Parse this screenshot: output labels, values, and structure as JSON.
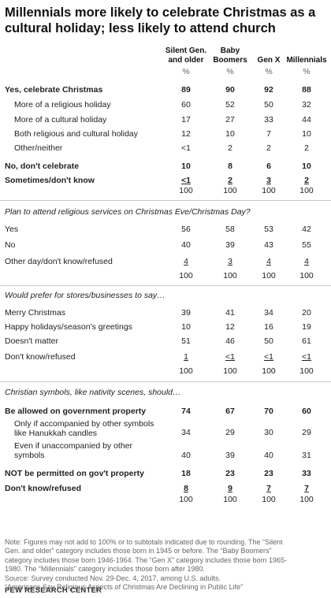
{
  "title": "Millennials more likely to celebrate Christmas as a cultural holiday; less likely to attend church",
  "columns": [
    [
      "Silent Gen.",
      "and older"
    ],
    [
      "Baby",
      "Boomers"
    ],
    [
      "Gen X"
    ],
    [
      "Millennials"
    ]
  ],
  "pct_row": [
    "%",
    "%",
    "%",
    "%"
  ],
  "section1": {
    "rows": [
      {
        "label": "Yes, celebrate Christmas",
        "values": [
          "89",
          "90",
          "92",
          "88"
        ]
      },
      {
        "label": "More of a religious holiday",
        "values": [
          "60",
          "52",
          "50",
          "32"
        ]
      },
      {
        "label": "More of a cultural holiday",
        "values": [
          "17",
          "27",
          "33",
          "44"
        ]
      },
      {
        "label": "Both religious and cultural holiday",
        "values": [
          "12",
          "10",
          "7",
          "10"
        ]
      },
      {
        "label": "Other/neither",
        "values": [
          "<1",
          "2",
          "2",
          "2"
        ]
      },
      {
        "label": "No, don't celebrate",
        "values": [
          "10",
          "8",
          "6",
          "10"
        ]
      },
      {
        "label": "Sometimes/don't know",
        "values": [
          "<1",
          "2",
          "3",
          "2"
        ]
      }
    ],
    "totals": [
      "100",
      "100",
      "100",
      "100"
    ]
  },
  "section2": {
    "question": "Plan to attend religious services on Christmas Eve/Christmas Day?",
    "rows": [
      {
        "label": "Yes",
        "values": [
          "56",
          "58",
          "53",
          "42"
        ]
      },
      {
        "label": "No",
        "values": [
          "40",
          "39",
          "43",
          "55"
        ]
      },
      {
        "label": "Other day/don't know/refused",
        "values": [
          "4",
          "3",
          "4",
          "4"
        ]
      }
    ],
    "totals": [
      "100",
      "100",
      "100",
      "100"
    ]
  },
  "section3": {
    "question": "Would prefer for stores/businesses to say…",
    "rows": [
      {
        "label": "Merry Christmas",
        "values": [
          "39",
          "41",
          "34",
          "20"
        ]
      },
      {
        "label": "Happy holidays/season's greetings",
        "values": [
          "10",
          "12",
          "16",
          "19"
        ]
      },
      {
        "label": "Doesn't matter",
        "values": [
          "51",
          "46",
          "50",
          "61"
        ]
      },
      {
        "label": "Don't know/refused",
        "values": [
          "1",
          "<1",
          "<1",
          "<1"
        ]
      }
    ],
    "totals": [
      "100",
      "100",
      "100",
      "100"
    ]
  },
  "section4": {
    "question": "Christian symbols, like nativity scenes, should…",
    "rows": [
      {
        "label": "Be allowed on government property",
        "values": [
          "74",
          "67",
          "70",
          "60"
        ]
      },
      {
        "label_lines": [
          "Only if accompanied by other symbols",
          "like Hanukkah candles"
        ],
        "values": [
          "34",
          "29",
          "30",
          "29"
        ]
      },
      {
        "label_lines": [
          "Even if unaccompanied by other",
          "symbols"
        ],
        "values": [
          "40",
          "39",
          "40",
          "31"
        ]
      },
      {
        "label": "NOT be permitted on gov't property",
        "values": [
          "18",
          "23",
          "23",
          "33"
        ]
      },
      {
        "label": "Don't know/refused",
        "values": [
          "8",
          "9",
          "7",
          "7"
        ]
      }
    ],
    "totals": [
      "100",
      "100",
      "100",
      "100"
    ]
  },
  "note_lines": [
    "Note: Figures may not add to 100% or to subtotals indicated due to rounding. The “Silent",
    "Gen. and older” category includes those born in 1945 or before. The “Baby Boomers”",
    "category includes those born 1946-1964. The “Gen X” category includes those born 1965-",
    "1980. The “Millennials” category includes those born after 1980.",
    "Source: Survey conducted Nov. 29-Dec. 4, 2017, among U.S. adults.",
    "“Americans Say Religious Aspects of Christmas Are Declining in Public Life”"
  ],
  "source": "PEW RESEARCH CENTER",
  "chart_data": {
    "type": "table",
    "title": "Millennials more likely to celebrate Christmas as a cultural holiday; less likely to attend church",
    "columns": [
      "Silent Gen. and older",
      "Baby Boomers",
      "Gen X",
      "Millennials"
    ],
    "unit": "%",
    "rows": [
      {
        "label": "Yes, celebrate Christmas",
        "values": [
          89,
          90,
          92,
          88
        ]
      },
      {
        "label": "More of a religious holiday",
        "values": [
          60,
          52,
          50,
          32
        ]
      },
      {
        "label": "More of a cultural holiday",
        "values": [
          17,
          27,
          33,
          44
        ]
      },
      {
        "label": "Both religious and cultural holiday",
        "values": [
          12,
          10,
          7,
          10
        ]
      },
      {
        "label": "Other/neither",
        "values": [
          "<1",
          2,
          2,
          2
        ]
      },
      {
        "label": "No, don't celebrate",
        "values": [
          10,
          8,
          6,
          10
        ]
      },
      {
        "label": "Sometimes/don't know",
        "values": [
          "<1",
          2,
          3,
          2
        ]
      },
      {
        "label": "Yes",
        "values": [
          56,
          58,
          53,
          42
        ]
      },
      {
        "label": "No",
        "values": [
          40,
          39,
          43,
          55
        ]
      },
      {
        "label": "Other day/don't know/refused",
        "values": [
          4,
          3,
          4,
          4
        ]
      },
      {
        "label": "Merry Christmas",
        "values": [
          39,
          41,
          34,
          20
        ]
      },
      {
        "label": "Happy holidays/season's greetings",
        "values": [
          10,
          12,
          16,
          19
        ]
      },
      {
        "label": "Doesn't matter",
        "values": [
          51,
          46,
          50,
          61
        ]
      },
      {
        "label": "Don't know/refused",
        "values": [
          1,
          "<1",
          "<1",
          "<1"
        ]
      },
      {
        "label": "Be allowed on government property",
        "values": [
          74,
          67,
          70,
          60
        ]
      },
      {
        "label": "Only if accompanied by other symbols like Hanukkah candles",
        "values": [
          34,
          29,
          30,
          29
        ]
      },
      {
        "label": "Even if unaccompanied by other symbols",
        "values": [
          40,
          39,
          40,
          31
        ]
      },
      {
        "label": "NOT be permitted on gov't property",
        "values": [
          18,
          23,
          23,
          33
        ]
      },
      {
        "label": "Don't know/refused",
        "values": [
          8,
          9,
          7,
          7
        ]
      }
    ]
  }
}
